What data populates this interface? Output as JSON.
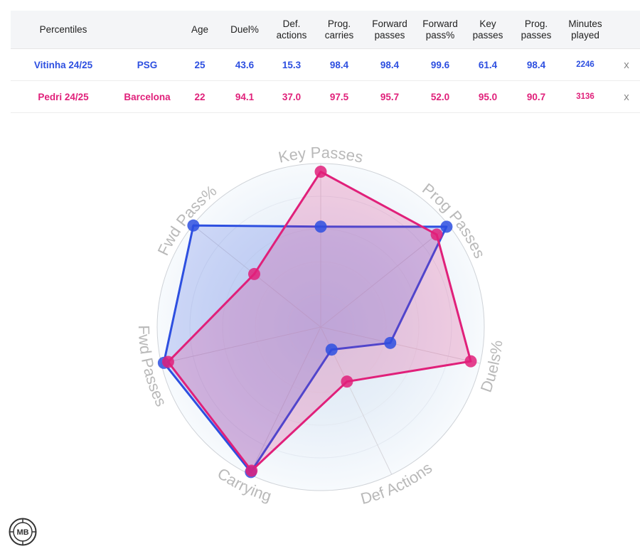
{
  "table": {
    "headers": [
      "Percentiles",
      "",
      "Age",
      "Duel%",
      "Def.\nactions",
      "Prog.\ncarries",
      "Forward\npasses",
      "Forward\npass%",
      "Key\npasses",
      "Prog.\npasses",
      "Minutes\nplayed"
    ],
    "rows": [
      {
        "player": "Vitinha 24/25",
        "team": "PSG",
        "age": "25",
        "duel_pct": "43.6",
        "def_actions": "15.3",
        "prog_carries": "98.4",
        "forward_passes": "98.4",
        "forward_pass_pct": "99.6",
        "key_passes": "61.4",
        "prog_passes": "98.4",
        "minutes": "2246",
        "remove": "x"
      },
      {
        "player": "Pedri 24/25",
        "team": "Barcelona",
        "age": "22",
        "duel_pct": "94.1",
        "def_actions": "37.0",
        "prog_carries": "97.5",
        "forward_passes": "95.7",
        "forward_pass_pct": "52.0",
        "key_passes": "95.0",
        "prog_passes": "90.7",
        "minutes": "3136",
        "remove": "x"
      }
    ]
  },
  "logo_text": "MB",
  "colors": {
    "vitinha": "#2d4fe0",
    "pedri": "#e0207a",
    "axis_label": "#b9b9b9"
  },
  "chart_data": {
    "type": "radar",
    "axes": [
      "Key Passes",
      "Prog Passes",
      "Duels%",
      "Def Actions",
      "Carrying",
      "Fwd Passes",
      "Fwd Pass%"
    ],
    "range": [
      0,
      100
    ],
    "series": [
      {
        "name": "Vitinha 24/25",
        "values": [
          61.4,
          98.4,
          43.6,
          15.3,
          98.4,
          98.4,
          99.6
        ]
      },
      {
        "name": "Pedri 24/25",
        "values": [
          95.0,
          90.7,
          94.1,
          37.0,
          97.5,
          95.7,
          52.0
        ]
      }
    ]
  }
}
